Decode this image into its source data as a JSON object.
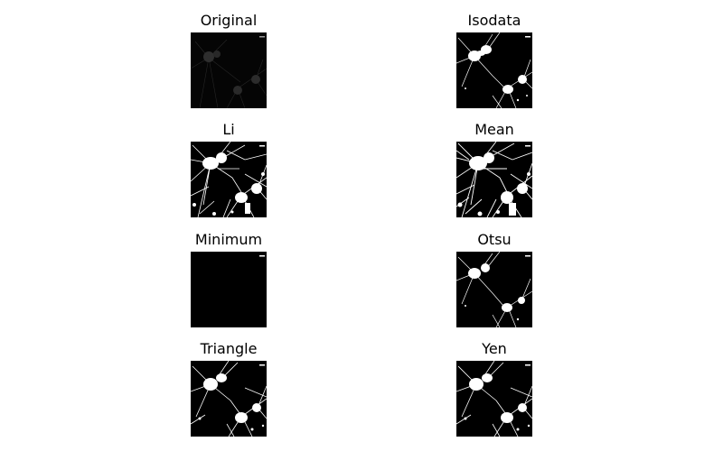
{
  "panels": [
    {
      "title": "Original",
      "image": "faint-grayscale-neuron-micrograph",
      "foreground_level": 0.12,
      "marker": "scale-bar-text"
    },
    {
      "title": "Isodata",
      "image": "binary-threshold-neuron-mask",
      "foreground_level": 1.0,
      "marker": "scale-bar-text"
    },
    {
      "title": "Li",
      "image": "binary-threshold-neuron-mask-dense",
      "foreground_level": 1.0,
      "marker": "scale-bar-text"
    },
    {
      "title": "Mean",
      "image": "binary-threshold-neuron-mask-dense",
      "foreground_level": 1.0,
      "marker": "scale-bar-text"
    },
    {
      "title": "Minimum",
      "image": "all-black-mask",
      "foreground_level": 0.0,
      "marker": "scale-bar-text"
    },
    {
      "title": "Otsu",
      "image": "binary-threshold-neuron-mask",
      "foreground_level": 1.0,
      "marker": "scale-bar-text"
    },
    {
      "title": "Triangle",
      "image": "binary-threshold-neuron-mask",
      "foreground_level": 1.0,
      "marker": "scale-bar-text"
    },
    {
      "title": "Yen",
      "image": "binary-threshold-neuron-mask",
      "foreground_level": 1.0,
      "marker": "scale-bar-text"
    }
  ],
  "colors": {
    "background": "#ffffff",
    "image_background": "#000000",
    "foreground": "#ffffff",
    "original_foreground": "#3a3a3a"
  }
}
